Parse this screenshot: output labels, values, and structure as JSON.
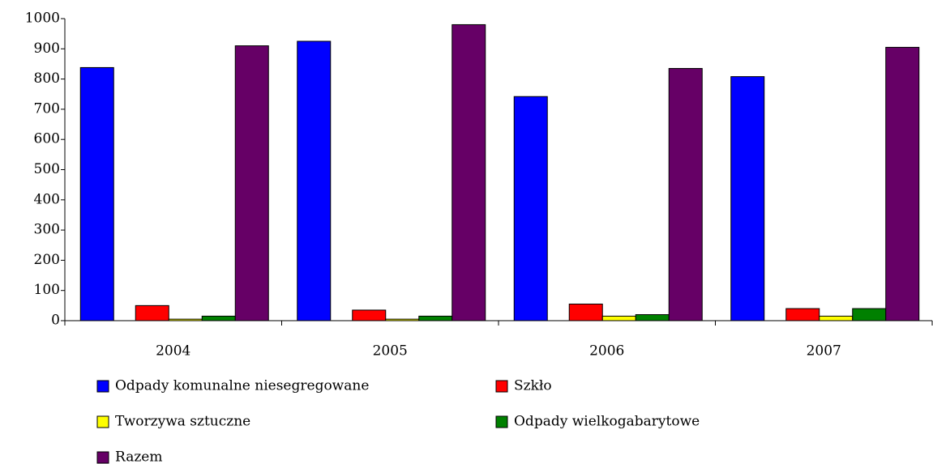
{
  "chart_data": {
    "type": "bar",
    "categories": [
      "2004",
      "2005",
      "2006",
      "2007"
    ],
    "series": [
      {
        "name": "Odpady komunalne niesegregowane",
        "color": "#0000ff",
        "values": [
          838,
          925,
          742,
          808
        ]
      },
      {
        "name": "Szkło",
        "color": "#ff0000",
        "values": [
          50,
          35,
          55,
          40
        ]
      },
      {
        "name": "Tworzywa sztuczne",
        "color": "#ffff00",
        "values": [
          5,
          5,
          15,
          15
        ]
      },
      {
        "name": "Odpady wielkogabarytowe",
        "color": "#008000",
        "values": [
          15,
          15,
          20,
          40
        ]
      },
      {
        "name": "Razem",
        "color": "#660066",
        "values": [
          910,
          980,
          835,
          905
        ]
      }
    ],
    "ylim": [
      0,
      1000
    ],
    "yticks": [
      0,
      100,
      200,
      300,
      400,
      500,
      600,
      700,
      800,
      900,
      1000
    ],
    "grid": false,
    "legend": "bottom"
  }
}
